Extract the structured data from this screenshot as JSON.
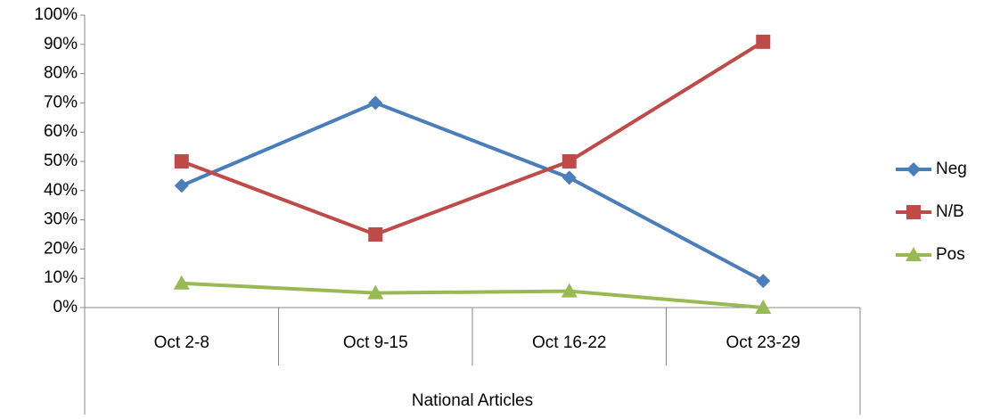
{
  "chart_data": {
    "type": "line",
    "x_label": "National Articles",
    "categories": [
      "Oct 2-8",
      "Oct 9-15",
      "Oct 16-22",
      "Oct 23-29"
    ],
    "series": [
      {
        "name": "Neg",
        "color": "#4a7ebb",
        "marker": "diamond",
        "values": [
          41.7,
          70,
          44.4,
          9.1
        ]
      },
      {
        "name": "N/B",
        "color": "#be4b48",
        "marker": "square",
        "values": [
          50,
          25,
          50,
          90.9
        ]
      },
      {
        "name": "Pos",
        "color": "#98b954",
        "marker": "triangle",
        "values": [
          8.3,
          5,
          5.6,
          0
        ]
      }
    ],
    "ylim": [
      0,
      100
    ],
    "yticks": [
      {
        "value": 0,
        "label": "0%"
      },
      {
        "value": 10,
        "label": "10%"
      },
      {
        "value": 20,
        "label": "20%"
      },
      {
        "value": 30,
        "label": "30%"
      },
      {
        "value": 40,
        "label": "40%"
      },
      {
        "value": 50,
        "label": "50%"
      },
      {
        "value": 60,
        "label": "60%"
      },
      {
        "value": 70,
        "label": "70%"
      },
      {
        "value": 80,
        "label": "80%"
      },
      {
        "value": 90,
        "label": "90%"
      },
      {
        "value": 100,
        "label": "100%"
      }
    ],
    "grid": false,
    "legend": "right"
  }
}
